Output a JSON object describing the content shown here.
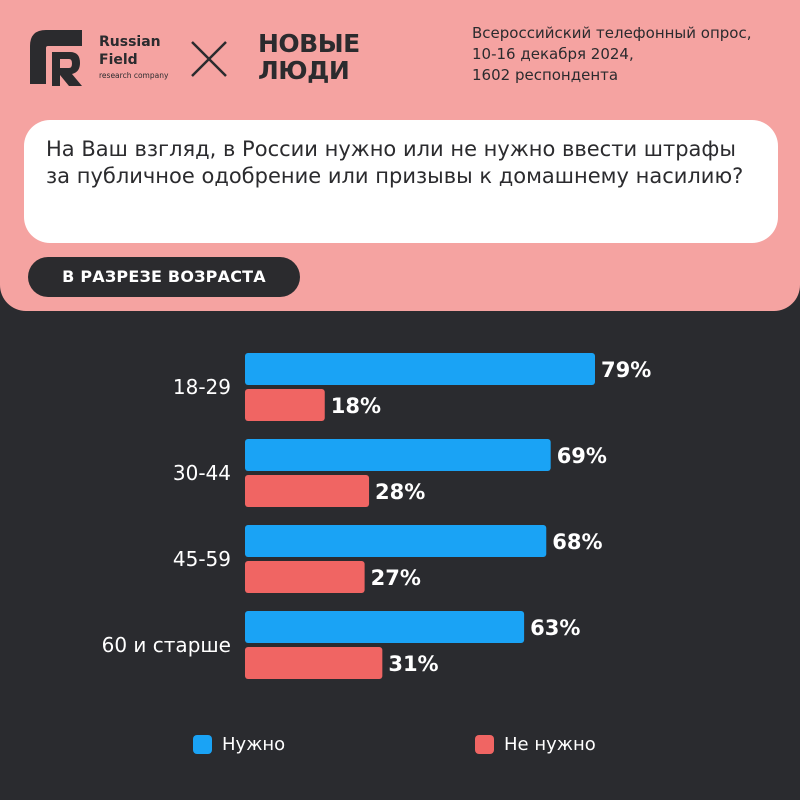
{
  "header": {
    "brand": {
      "name_line1": "Russian",
      "name_line2": "Field",
      "subtitle": "research company"
    },
    "partner": {
      "line1": "НОВЫЕ",
      "line2": "ЛЮДИ"
    },
    "survey_info": [
      "Всероссийский телефонный опрос,",
      "10-16 декабря 2024,",
      "1602 респондента"
    ]
  },
  "question": "На Ваш взгляд, в России нужно или не нужно ввести штрафы за публичное одобрение или призывы к домашнему насилию?",
  "section_label": "В РАЗРЕЗЕ ВОЗРАСТА",
  "colors": {
    "need": "#1aa3f5",
    "not_need": "#f06563",
    "panel": "#f5a3a1",
    "background": "#2a2b2f"
  },
  "icons": [
    "russian-field-logo-icon",
    "cross-icon"
  ],
  "chart_data": {
    "type": "bar",
    "orientation": "horizontal",
    "categories": [
      "18-29",
      "30-44",
      "45-59",
      "60 и старше"
    ],
    "series": [
      {
        "name": "Нужно",
        "values": [
          79,
          69,
          68,
          63
        ],
        "labels": [
          "79%",
          "69%",
          "68%",
          "63%"
        ],
        "color": "#1aa3f5"
      },
      {
        "name": "Не нужно",
        "values": [
          18,
          28,
          27,
          31
        ],
        "labels": [
          "18%",
          "28%",
          "27%",
          "31%"
        ],
        "color": "#f06563"
      }
    ],
    "unit": "%",
    "xlim": [
      0,
      100
    ],
    "grid": false,
    "legend": "bottom"
  }
}
